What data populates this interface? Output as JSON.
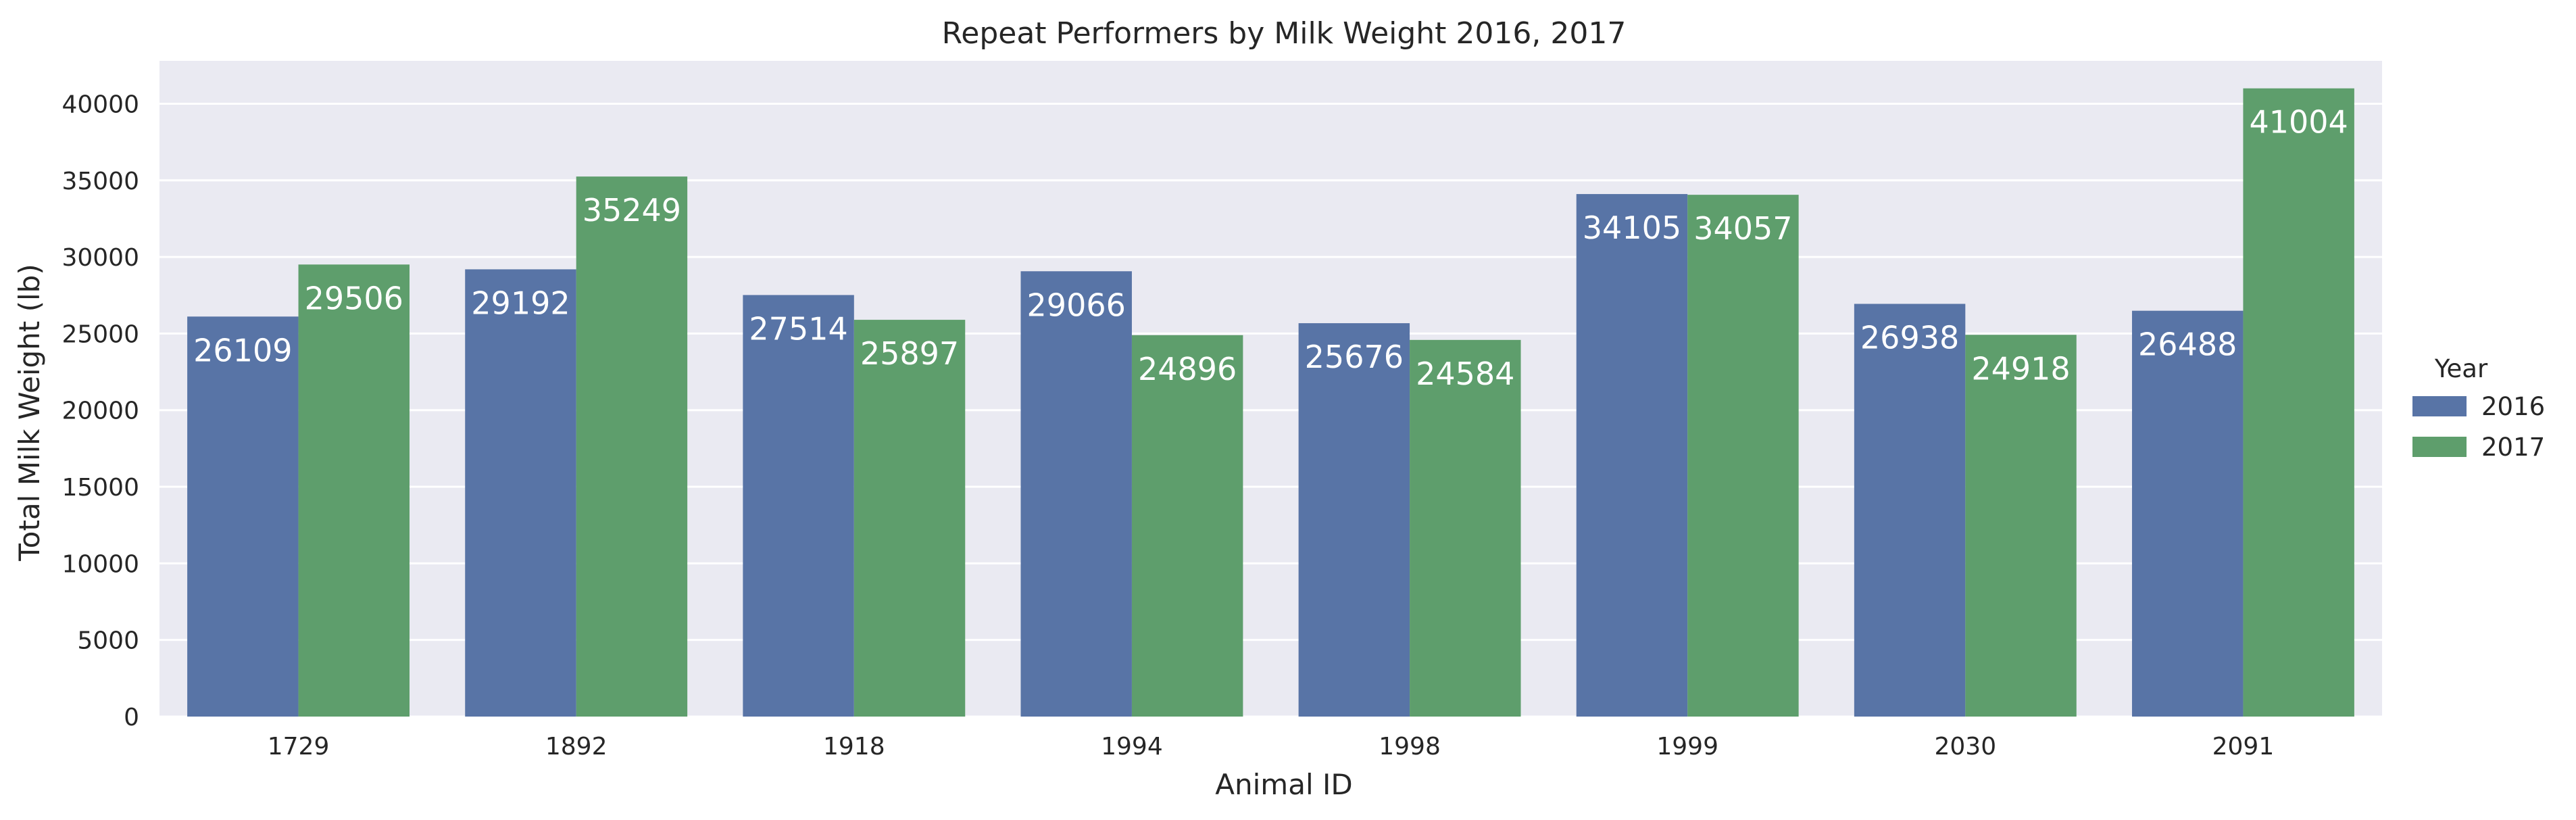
{
  "chart_data": {
    "type": "bar",
    "title": "Repeat Performers by Milk Weight 2016, 2017",
    "xlabel": "Animal ID",
    "ylabel": "Total Milk Weight (lb)",
    "categories": [
      "1729",
      "1892",
      "1918",
      "1994",
      "1998",
      "1999",
      "2030",
      "2091"
    ],
    "series": [
      {
        "name": "2016",
        "color": "#5874a6",
        "values": [
          26109,
          29192,
          27514,
          29066,
          25676,
          34105,
          26938,
          26488
        ]
      },
      {
        "name": "2017",
        "color": "#5e9e6c",
        "values": [
          29506,
          35249,
          25897,
          24896,
          24584,
          34057,
          24918,
          41004
        ]
      }
    ],
    "ylim": [
      0,
      42800
    ],
    "yticks": [
      0,
      5000,
      10000,
      15000,
      20000,
      25000,
      30000,
      35000,
      40000
    ],
    "grid": true,
    "background": "#eaeaf2",
    "legend": {
      "title": "Year",
      "placement": "right"
    }
  }
}
